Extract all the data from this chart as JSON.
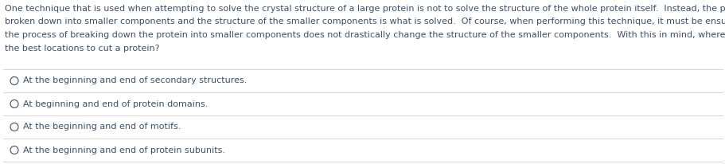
{
  "paragraph_lines": [
    "One technique that is used when attempting to solve the crystal structure of a large protein is not to solve the structure of the whole protein itself.  Instead, the protein is",
    "broken down into smaller components and the structure of the smaller components is what is solved.  Of course, when performing this technique, it must be ensured that",
    "the process of breaking down the protein into smaller components does not drastically change the structure of the smaller components.  With this in mind, where would be",
    "the best locations to cut a protein?"
  ],
  "options": [
    "At the beginning and end of secondary structures.",
    "At beginning and end of protein domains.",
    "At the beginning and end of motifs.",
    "At the beginning and end of protein subunits."
  ],
  "bg_color": "#ffffff",
  "text_color": "#3d5068",
  "line_color": "#cccccc",
  "font_size": 8.0,
  "fig_width": 9.12,
  "fig_height": 2.06,
  "dpi": 100
}
